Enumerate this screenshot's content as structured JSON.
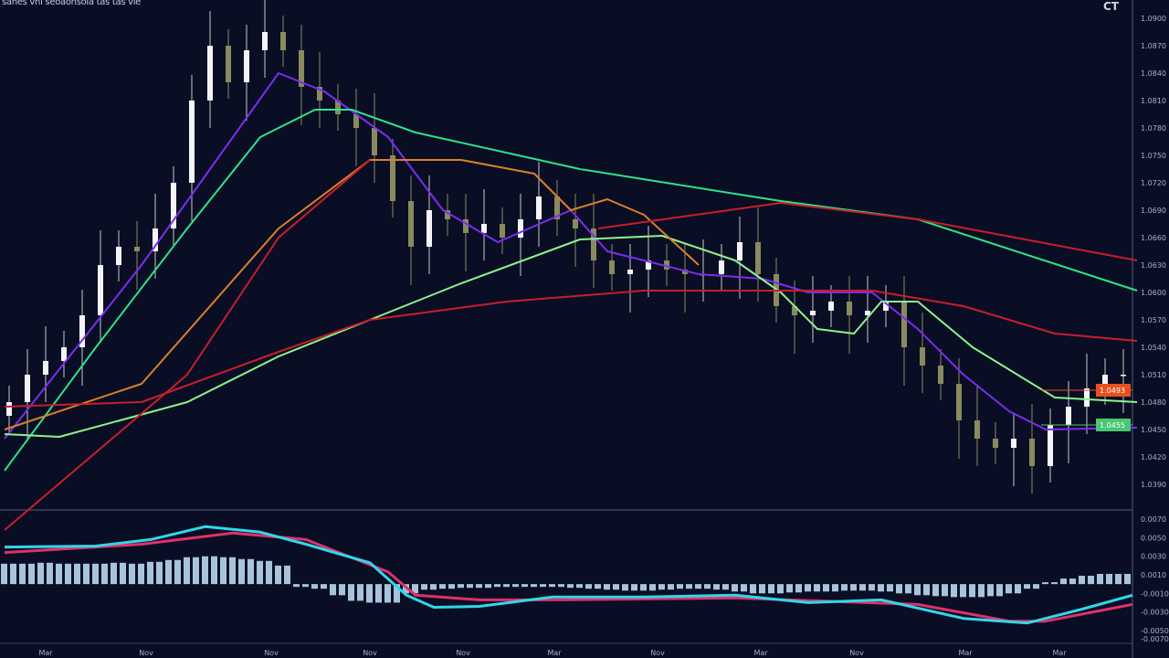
{
  "header": {
    "title": "sanes vni seoaonsoia tas tas vie",
    "symbol": "CT"
  },
  "colors": {
    "background": "#0a0e24",
    "bull": "#f4f4f8",
    "bear": "#8a8a60",
    "macd": "#30d8e8",
    "signal": "#e0306a",
    "histogram": "#b8d8f0",
    "badge_orange": "#e8501e",
    "badge_green": "#48c870"
  },
  "chart_data": [
    {
      "type": "candlestick",
      "ylim": [
        1.0365,
        1.092
      ],
      "y_ticks": [
        "1.0900",
        "1.0870",
        "1.0840",
        "1.0810",
        "1.0780",
        "1.0750",
        "1.0720",
        "1.0690",
        "1.0660",
        "1.0630",
        "1.0600",
        "1.0570",
        "1.0540",
        "1.0510",
        "1.0480",
        "1.0450",
        "1.0420",
        "1.0390"
      ],
      "x_ticks": [
        "Mar",
        "Nov",
        "Nov",
        "Nov",
        "Nov",
        "Mar",
        "Nov",
        "Mar",
        "Nov",
        "Mar",
        "Mar"
      ],
      "close": [
        1.048,
        1.051,
        1.0525,
        1.054,
        1.0575,
        1.063,
        1.065,
        1.0645,
        1.067,
        1.072,
        1.081,
        1.087,
        1.083,
        1.0865,
        1.0885,
        1.0865,
        1.0825,
        1.081,
        1.0795,
        1.078,
        1.075,
        1.07,
        1.065,
        1.069,
        1.068,
        1.0665,
        1.0675,
        1.066,
        1.068,
        1.0705,
        1.068,
        1.067,
        1.0635,
        1.062,
        1.0625,
        1.0635,
        1.0625,
        1.062,
        1.062,
        1.0635,
        1.0655,
        1.062,
        1.0585,
        1.0575,
        1.058,
        1.059,
        1.0575,
        1.058,
        1.059,
        1.054,
        1.052,
        1.05,
        1.046,
        1.044,
        1.043,
        1.044,
        1.041,
        1.0455,
        1.0475,
        1.0495,
        1.051,
        1.051
      ],
      "moving_averages": [
        {
          "color": "#7b2cf0",
          "points": [
            [
              -0.25,
              1.044
            ],
            [
              7.25,
              1.063
            ],
            [
              14.75,
              1.084
            ],
            [
              17.25,
              1.082
            ],
            [
              20.75,
              1.077
            ],
            [
              23.75,
              1.069
            ],
            [
              26.75,
              1.0655
            ],
            [
              30.75,
              1.069
            ],
            [
              32.75,
              1.0645
            ],
            [
              37.75,
              1.062
            ],
            [
              41.25,
              1.0615
            ],
            [
              43.75,
              1.06
            ],
            [
              47.25,
              1.06
            ],
            [
              49.75,
              1.056
            ],
            [
              52.25,
              1.051
            ],
            [
              54.75,
              1.047
            ],
            [
              56.75,
              1.045
            ],
            [
              61.75,
              1.0452
            ]
          ]
        },
        {
          "color": "#2de38a",
          "points": [
            [
              -0.25,
              1.0405
            ],
            [
              4.75,
              1.054
            ],
            [
              9.75,
              1.067
            ],
            [
              13.75,
              1.077
            ],
            [
              16.75,
              1.08
            ],
            [
              18.75,
              1.08
            ],
            [
              22.25,
              1.0775
            ],
            [
              31.25,
              1.0735
            ],
            [
              42.25,
              1.07
            ],
            [
              49.75,
              1.068
            ],
            [
              61.75,
              1.0602
            ]
          ]
        },
        {
          "color": "#8cf58c",
          "points": [
            [
              -0.25,
              1.0445
            ],
            [
              2.75,
              1.0442
            ],
            [
              9.75,
              1.048
            ],
            [
              14.75,
              1.053
            ],
            [
              19.75,
              1.057
            ],
            [
              24.75,
              1.061
            ],
            [
              31.25,
              1.0658
            ],
            [
              35.75,
              1.0662
            ],
            [
              39.75,
              1.0635
            ],
            [
              42.25,
              1.06
            ],
            [
              44.25,
              1.056
            ],
            [
              46.25,
              1.0555
            ],
            [
              47.75,
              1.059
            ],
            [
              49.75,
              1.059
            ],
            [
              52.75,
              1.054
            ],
            [
              57.25,
              1.0485
            ],
            [
              61.75,
              1.048
            ]
          ]
        },
        {
          "color": "#d9802a",
          "points": [
            [
              -0.25,
              1.045
            ],
            [
              7.25,
              1.05
            ],
            [
              14.75,
              1.067
            ],
            [
              19.75,
              1.0745
            ],
            [
              24.75,
              1.0745
            ],
            [
              28.75,
              1.073
            ],
            [
              30.75,
              1.069
            ],
            [
              32.75,
              1.0702
            ],
            [
              34.75,
              1.0685
            ],
            [
              37.75,
              1.063
            ]
          ]
        },
        {
          "color": "#c81e2a",
          "points": [
            [
              -0.25,
              1.034
            ],
            [
              9.75,
              1.051
            ],
            [
              14.75,
              1.066
            ],
            [
              19.75,
              1.0745
            ]
          ]
        },
        {
          "color": "#c81e2a",
          "points": [
            [
              -0.25,
              1.0475
            ],
            [
              7.25,
              1.048
            ],
            [
              14.75,
              1.0535
            ],
            [
              19.75,
              1.057
            ],
            [
              27.25,
              1.059
            ],
            [
              34.75,
              1.0602
            ],
            [
              40.75,
              1.0602
            ],
            [
              47.25,
              1.0602
            ],
            [
              52.25,
              1.0585
            ],
            [
              57.25,
              1.0555
            ],
            [
              61.75,
              1.0547
            ]
          ]
        },
        {
          "color": "#c81e2a",
          "points": [
            [
              32.25,
              1.067
            ],
            [
              42.25,
              1.0698
            ],
            [
              49.75,
              1.068
            ],
            [
              61.75,
              1.0635
            ]
          ]
        }
      ],
      "last_price_badges": [
        {
          "label": "1.0493",
          "price": 1.0493,
          "color": "#e8501e"
        },
        {
          "label": "1.0455",
          "price": 1.0455,
          "color": "#48c870"
        }
      ]
    },
    {
      "type": "macd",
      "ylim": [
        -0.0006,
        0.00078
      ],
      "y_ticks": [
        "0.0070",
        "0.0050",
        "0.0030",
        "0.0010",
        "-0.0010",
        "-0.0030",
        "-0.0050",
        "-0.0070"
      ],
      "histogram": [
        0.00022,
        0.00022,
        0.00023,
        0.00022,
        0.00022,
        0.00022,
        0.00023,
        0.00022,
        0.00024,
        0.00026,
        0.00029,
        0.0003,
        0.00029,
        0.00027,
        0.00025,
        0.0002,
        -3e-05,
        -5e-05,
        -0.00012,
        -0.00018,
        -0.0002,
        -0.0002,
        -0.0001,
        -6e-05,
        -5e-05,
        -4e-05,
        -4e-05,
        -3e-05,
        -3e-05,
        -3e-05,
        -3e-05,
        -4e-05,
        -5e-05,
        -6e-05,
        -7e-05,
        -7e-05,
        -6e-05,
        -5e-05,
        -5e-05,
        -6e-05,
        -8e-05,
        -0.0001,
        -0.0001,
        -9e-05,
        -8e-05,
        -8e-05,
        -7e-05,
        -7e-05,
        -8e-05,
        -0.0001,
        -0.00012,
        -0.00013,
        -0.00014,
        -0.00014,
        -0.00013,
        -0.0001,
        -5e-05,
        2e-05,
        6e-05,
        9e-05,
        0.00011,
        0.00011
      ],
      "macd": [
        [
          -0.25,
          0.0004
        ],
        [
          4.75,
          0.00041
        ],
        [
          7.75,
          0.00048
        ],
        [
          10.75,
          0.00062
        ],
        [
          13.75,
          0.00056
        ],
        [
          16.25,
          0.00043
        ],
        [
          19.75,
          0.00023
        ],
        [
          21.75,
          -0.00012
        ],
        [
          23.25,
          -0.00025
        ],
        [
          25.75,
          -0.00024
        ],
        [
          29.75,
          -0.00014
        ],
        [
          34.75,
          -0.00014
        ],
        [
          39.75,
          -0.00012
        ],
        [
          43.75,
          -0.0002
        ],
        [
          47.75,
          -0.00017
        ],
        [
          52.25,
          -0.00037
        ],
        [
          55.75,
          -0.00042
        ],
        [
          58.75,
          -0.00027
        ],
        [
          61.5,
          -0.00012
        ]
      ],
      "signal": [
        [
          -0.25,
          0.00034
        ],
        [
          7.25,
          0.00043
        ],
        [
          12.25,
          0.00055
        ],
        [
          16.25,
          0.00048
        ],
        [
          20.75,
          0.00013
        ],
        [
          22.25,
          -0.00012
        ],
        [
          25.75,
          -0.00017
        ],
        [
          29.75,
          -0.00017
        ],
        [
          39.75,
          -0.00015
        ],
        [
          49.75,
          -0.00022
        ],
        [
          54.75,
          -0.0004
        ],
        [
          56.75,
          -0.0004
        ],
        [
          61.5,
          -0.00022
        ]
      ]
    }
  ]
}
